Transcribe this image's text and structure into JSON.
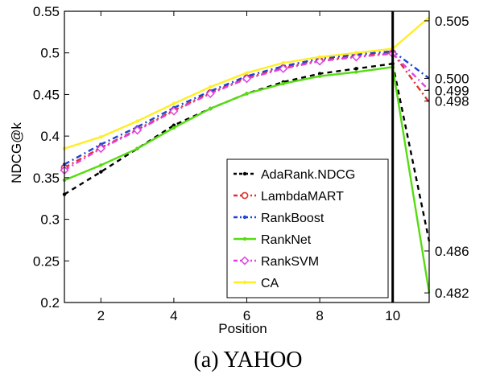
{
  "caption": "(a)  YAHOO",
  "chart_data": {
    "type": "line",
    "xlabel": "Position",
    "ylabel": "NDCG@k",
    "xlim": [
      1,
      11
    ],
    "ylim": [
      0.2,
      0.55
    ],
    "xticks": [
      2,
      4,
      6,
      8,
      10
    ],
    "yticks": [
      "0.2",
      "0.25",
      "0.3",
      "0.35",
      "0.4",
      "0.45",
      "0.5",
      "0.55"
    ],
    "right_ylim": [
      0.4814,
      0.5057
    ],
    "right_yticks": [
      "0.482",
      "0.486",
      "0.498",
      "0.499",
      "0.500",
      "0.505"
    ],
    "right_ytick_values": [
      0.4822,
      0.4857,
      0.4982,
      0.4991,
      0.5001,
      0.5049
    ],
    "break_at_x": 10,
    "grid": false,
    "legend_position": "bottom-right",
    "x": [
      1,
      2,
      3,
      4,
      5,
      6,
      7,
      8,
      9,
      10
    ],
    "series": [
      {
        "name": "AdaRank.NDCG",
        "color": "#000000",
        "dash": "6,5",
        "marker": "dot",
        "values": [
          0.33,
          0.357,
          0.385,
          0.413,
          0.433,
          0.451,
          0.465,
          0.475,
          0.481,
          0.487
        ],
        "tail_right": 0.4865
      },
      {
        "name": "LambdaMART",
        "color": "#e0302a",
        "dash": "7,4,2,4",
        "marker": "circle",
        "values": [
          0.362,
          0.386,
          0.408,
          0.431,
          0.452,
          0.47,
          0.482,
          0.491,
          0.496,
          0.5
        ],
        "tail_right": 0.4981
      },
      {
        "name": "RankBoost",
        "color": "#1a44d6",
        "dash": "7,4,2,4",
        "marker": "dot",
        "values": [
          0.366,
          0.39,
          0.411,
          0.434,
          0.454,
          0.472,
          0.484,
          0.493,
          0.498,
          0.502
        ],
        "tail_right": 0.5001
      },
      {
        "name": "RankNet",
        "color": "#55dd11",
        "dash": "",
        "marker": "dot",
        "values": [
          0.347,
          0.365,
          0.385,
          0.41,
          0.433,
          0.451,
          0.463,
          0.472,
          0.477,
          0.483
        ],
        "tail_right": 0.4822
      },
      {
        "name": "RankSVM",
        "color": "#e040e0",
        "dash": "7,4,2,4",
        "marker": "diamond",
        "values": [
          0.359,
          0.385,
          0.407,
          0.43,
          0.451,
          0.469,
          0.481,
          0.49,
          0.495,
          0.499
        ],
        "tail_right": 0.4991
      },
      {
        "name": "CA",
        "color": "#ffee22",
        "dash": "",
        "marker": "dot",
        "values": [
          0.385,
          0.399,
          0.418,
          0.439,
          0.459,
          0.476,
          0.488,
          0.495,
          0.5,
          0.505
        ],
        "tail_right": 0.5052
      }
    ]
  }
}
